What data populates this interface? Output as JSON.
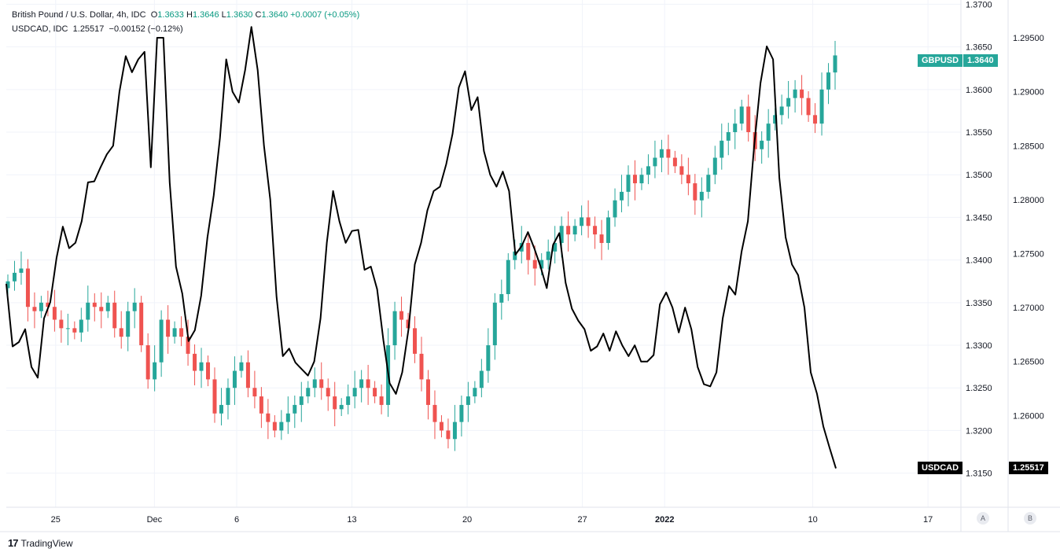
{
  "legend": {
    "main": {
      "symbol": "British Pound / U.S. Dollar, 4h, IDC",
      "o_label": "O",
      "o": "1.3633",
      "h_label": "H",
      "h": "1.3646",
      "l_label": "L",
      "l": "1.3630",
      "c_label": "C",
      "c": "1.3640",
      "change": "+0.0007 (+0.05%)"
    },
    "compare": {
      "symbol": "USDCAD, IDC",
      "last": "1.25517",
      "change": "−0.00152 (−0.12%)"
    }
  },
  "price_tags": {
    "gbpusd_label": "GBPUSD",
    "gbpusd_value": "1.3640",
    "usdcad_label": "USDCAD",
    "usdcad_value": "1.25517"
  },
  "scale_buttons": {
    "a": "A",
    "b": "B"
  },
  "footer": {
    "brand": "TradingView",
    "logo_mark": "17"
  },
  "colors": {
    "up": "#26a69a",
    "down": "#ef5350",
    "compare_line": "#000000",
    "grid": "#f0f3fa",
    "axis_text": "#131722",
    "tag_gbp": "#26a69a",
    "tag_cad": "#000000"
  },
  "chart_data": {
    "type": "candlestick",
    "x_ticks": [
      "25",
      "Dec",
      "6",
      "13",
      "20",
      "27",
      "2022",
      "10",
      "17"
    ],
    "y_left_ticks": [],
    "y_axis_main": {
      "ticks": [
        "1.3700",
        "1.3650",
        "1.3600",
        "1.3550",
        "1.3500",
        "1.3450",
        "1.3400",
        "1.3350",
        "1.3300",
        "1.3250",
        "1.3200",
        "1.3150"
      ],
      "range": [
        1.311,
        1.3705
      ]
    },
    "y_axis_compare": {
      "ticks": [
        "1.29500",
        "1.29000",
        "1.28500",
        "1.28000",
        "1.27500",
        "1.27000",
        "1.26500",
        "1.26000"
      ],
      "range": [
        1.2515,
        1.2985
      ]
    },
    "x_range": [
      "2021-11-22",
      "2022-01-19"
    ],
    "series": [
      {
        "name": "GBPUSD",
        "ohlc_close": [
          1.3375,
          1.3385,
          1.339,
          1.3345,
          1.334,
          1.335,
          1.3345,
          1.333,
          1.332,
          1.332,
          1.3315,
          1.333,
          1.335,
          1.3345,
          1.334,
          1.335,
          1.332,
          1.331,
          1.334,
          1.335,
          1.33,
          1.326,
          1.328,
          1.333,
          1.331,
          1.332,
          1.331,
          1.329,
          1.327,
          1.328,
          1.326,
          1.322,
          1.323,
          1.325,
          1.327,
          1.328,
          1.325,
          1.324,
          1.322,
          1.321,
          1.32,
          1.321,
          1.322,
          1.323,
          1.324,
          1.325,
          1.326,
          1.325,
          1.324,
          1.3225,
          1.323,
          1.324,
          1.325,
          1.326,
          1.325,
          1.324,
          1.323,
          1.33,
          1.334,
          1.333,
          1.332,
          1.329,
          1.326,
          1.323,
          1.321,
          1.32,
          1.319,
          1.321,
          1.323,
          1.324,
          1.325,
          1.327,
          1.33,
          1.335,
          1.336,
          1.34,
          1.341,
          1.342,
          1.34,
          1.339,
          1.34,
          1.341,
          1.342,
          1.344,
          1.343,
          1.344,
          1.345,
          1.344,
          1.343,
          1.342,
          1.345,
          1.347,
          1.348,
          1.35,
          1.349,
          1.35,
          1.351,
          1.352,
          1.353,
          1.352,
          1.351,
          1.35,
          1.349,
          1.347,
          1.348,
          1.35,
          1.352,
          1.354,
          1.355,
          1.356,
          1.358,
          1.355,
          1.353,
          1.354,
          1.356,
          1.357,
          1.358,
          1.359,
          1.36,
          1.359,
          1.357,
          1.356,
          1.36,
          1.362,
          1.364
        ]
      },
      {
        "name": "USDCAD",
        "line_values": [
          1.2722,
          1.2664,
          1.2668,
          1.268,
          1.2645,
          1.2635,
          1.269,
          1.2705,
          1.2746,
          1.2775,
          1.2755,
          1.276,
          1.278,
          1.2816,
          1.2817,
          1.283,
          1.2842,
          1.285,
          1.29,
          1.2933,
          1.2918,
          1.293,
          1.2937,
          1.283,
          1.295,
          1.295,
          1.2816,
          1.2738,
          1.2713,
          1.2669,
          1.2679,
          1.2711,
          1.2765,
          1.2804,
          1.2857,
          1.293,
          1.29,
          1.289,
          1.292,
          1.296,
          1.292,
          1.285,
          1.28,
          1.271,
          1.2655,
          1.2662,
          1.2649,
          1.2643,
          1.2637,
          1.265,
          1.269,
          1.276,
          1.2808,
          1.278,
          1.276,
          1.2771,
          1.2772,
          1.2735,
          1.2738,
          1.2717,
          1.267,
          1.263,
          1.262,
          1.264,
          1.268,
          1.274,
          1.276,
          1.279,
          1.2808,
          1.2812,
          1.2833,
          1.2861,
          1.2904,
          1.2919,
          1.2883,
          1.2895,
          1.2845,
          1.2823,
          1.2812,
          1.2826,
          1.2808,
          1.2749,
          1.2757,
          1.277,
          1.2755,
          1.2738,
          1.2718,
          1.2758,
          1.2769,
          1.2723,
          1.2699,
          1.2688,
          1.268,
          1.266,
          1.2664,
          1.2676,
          1.266,
          1.2678,
          1.2665,
          1.2655,
          1.2665,
          1.265,
          1.265,
          1.2656,
          1.2703,
          1.2714,
          1.27,
          1.2677,
          1.27,
          1.268,
          1.2645,
          1.2629,
          1.2627,
          1.264,
          1.269,
          1.272,
          1.2712,
          1.2752,
          1.278,
          1.285,
          1.2908,
          1.2942,
          1.293,
          1.282,
          1.2765,
          1.274,
          1.273,
          1.27,
          1.264,
          1.262,
          1.259,
          1.257,
          1.2551
        ]
      }
    ],
    "grid": true,
    "legend_position": "top-left"
  }
}
